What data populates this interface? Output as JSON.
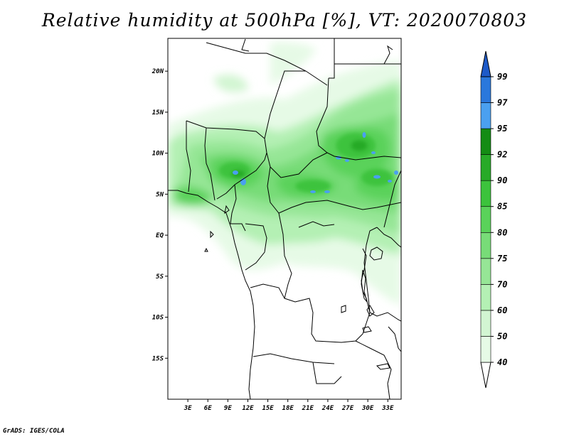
{
  "title": "Relative humidity at 500hPa [%], VT: 2020070803",
  "footer": "GrADS: IGES/COLA",
  "map": {
    "lat_labels": [
      "20N",
      "15N",
      "10N",
      "5N",
      "EQ",
      "5S",
      "10S",
      "15S"
    ],
    "lat_values": [
      20,
      15,
      10,
      5,
      0,
      -5,
      -10,
      -15
    ],
    "lon_labels": [
      "3E",
      "6E",
      "9E",
      "12E",
      "15E",
      "18E",
      "21E",
      "24E",
      "27E",
      "30E",
      "33E"
    ],
    "lon_values": [
      3,
      6,
      9,
      12,
      15,
      18,
      21,
      24,
      27,
      30,
      33
    ],
    "lon_range": [
      0,
      35
    ],
    "lat_range": [
      -20,
      24
    ]
  },
  "colorbar": {
    "labels": [
      "40",
      "50",
      "60",
      "70",
      "75",
      "80",
      "85",
      "90",
      "92",
      "95",
      "97",
      "99"
    ],
    "colors": [
      "#ffffff",
      "#e6fae6",
      "#d2f5d2",
      "#b4f0b4",
      "#96e696",
      "#78dc78",
      "#5ad25a",
      "#3cc33c",
      "#28aa28",
      "#148c14",
      "#4aa0f0",
      "#2a78dc",
      "#1e5ac8"
    ]
  },
  "colors": {
    "frame": "#000000",
    "boundary": "#000000"
  }
}
